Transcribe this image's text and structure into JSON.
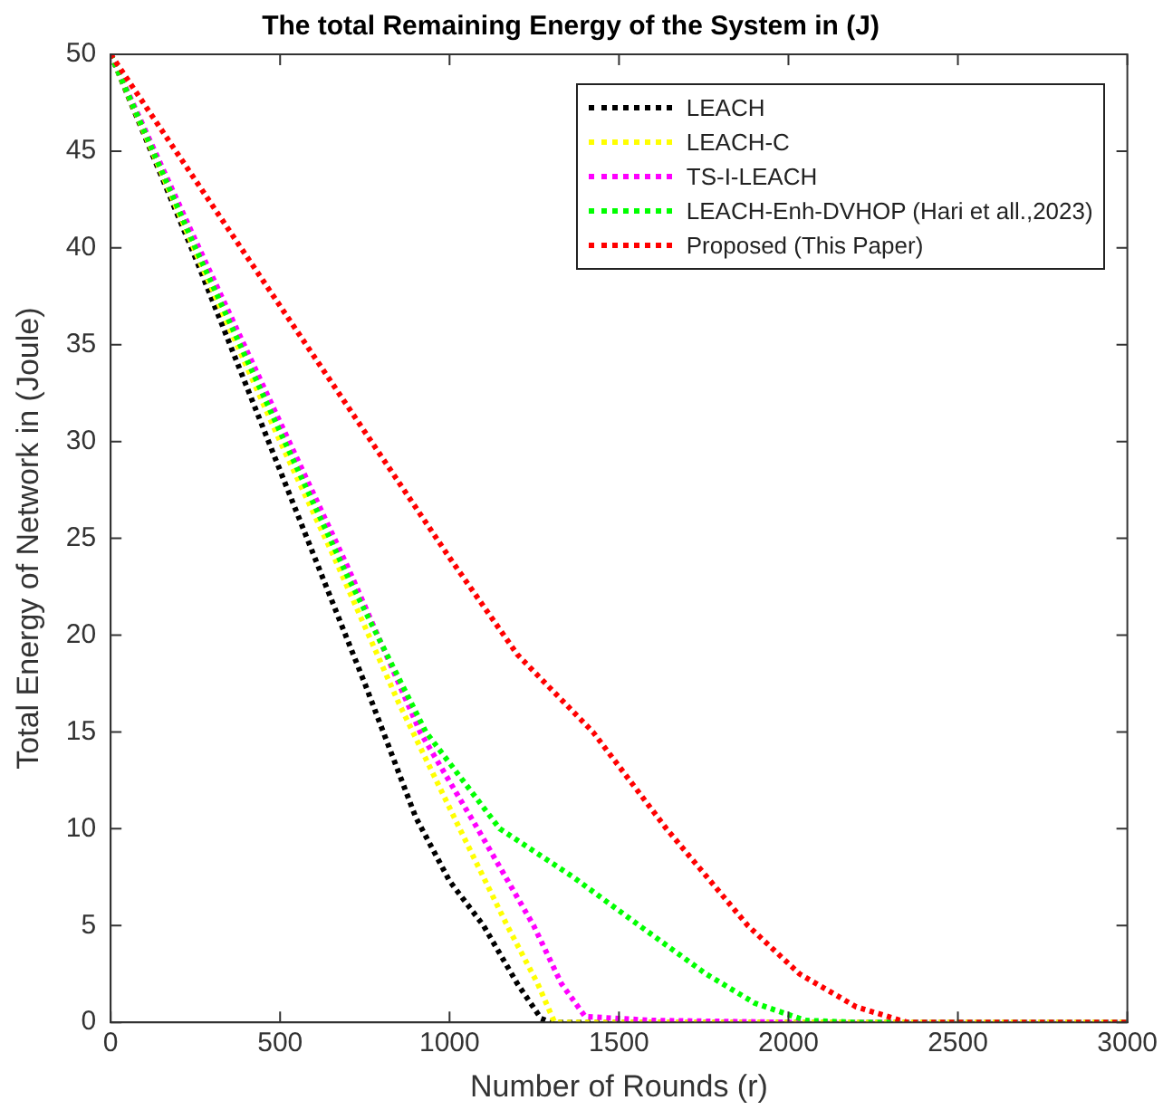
{
  "chart_data": {
    "type": "line",
    "title": "The total Remaining Energy of the System in (J)",
    "xlabel": "Number of Rounds (r)",
    "ylabel": "Total Energy of Network in (Joule)",
    "xlim": [
      0,
      3000
    ],
    "xticks": [
      0,
      500,
      1000,
      1500,
      2000,
      2500,
      3000
    ],
    "ylim": [
      0,
      50
    ],
    "yticks": [
      0,
      5,
      10,
      15,
      20,
      25,
      30,
      35,
      40,
      45,
      50
    ],
    "grid": false,
    "legend": "top right",
    "marker": "none",
    "line_style": "dotted",
    "series": [
      {
        "name": "LEACH",
        "color": "#000000",
        "x": [
          0,
          250,
          500,
          600,
          750,
          900,
          1000,
          1100,
          1200,
          1270,
          1300,
          3000
        ],
        "values": [
          50,
          39.5,
          28.5,
          24.1,
          17.5,
          10.6,
          7.3,
          5,
          2,
          0.2,
          0,
          0
        ]
      },
      {
        "name": "LEACH-C",
        "color": "#ffff00",
        "x": [
          0,
          250,
          500,
          660,
          850,
          1030,
          1170,
          1260,
          1310,
          3000
        ],
        "values": [
          50,
          39.8,
          30,
          24,
          16.5,
          10,
          5,
          2,
          0,
          0
        ]
      },
      {
        "name": "TS-I-LEACH",
        "color": "#ff00ff",
        "x": [
          0,
          250,
          500,
          700,
          913,
          1083,
          1248,
          1330,
          1400,
          1600,
          2000,
          3000
        ],
        "values": [
          50,
          40.4,
          31,
          23.5,
          15,
          10,
          5,
          2,
          0.3,
          0.1,
          0,
          0
        ]
      },
      {
        "name": "LEACH-Enh-DVHOP (Hari et all.,2023)",
        "color": "#00ff00",
        "x": [
          0,
          250,
          500,
          700,
          930,
          1148,
          1365,
          1560,
          1757,
          1900,
          2050,
          2200,
          3000
        ],
        "values": [
          50,
          40,
          30.5,
          23,
          15,
          10,
          7.5,
          5,
          2.5,
          1,
          0.1,
          0,
          0
        ]
      },
      {
        "name": "Proposed (This Paper)",
        "color": "#ff0000",
        "x": [
          0,
          500,
          1000,
          1200,
          1423,
          1640,
          1880,
          2033,
          2200,
          2350,
          3000
        ],
        "values": [
          50,
          37,
          24,
          19,
          15,
          10,
          5,
          2.5,
          0.8,
          0,
          0
        ]
      }
    ]
  }
}
